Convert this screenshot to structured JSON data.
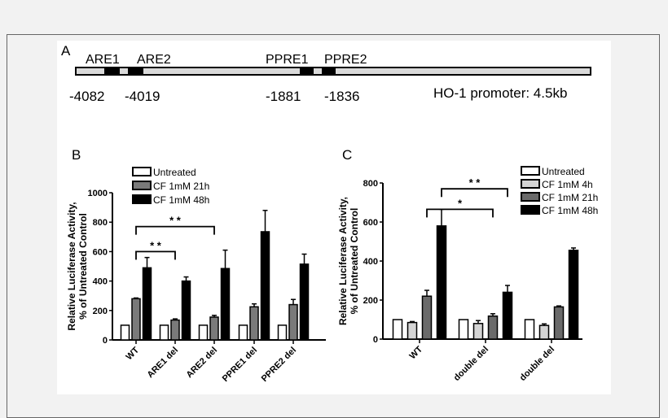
{
  "panel_a": {
    "label": "A",
    "elements": [
      {
        "name": "ARE1",
        "position": "-4082"
      },
      {
        "name": "ARE2",
        "position": "-4019"
      },
      {
        "name": "PPRE1",
        "position": "-1881"
      },
      {
        "name": "PPRE2",
        "position": "-1836"
      }
    ],
    "caption": "HO-1 promoter: 4.5kb"
  },
  "chart_data": [
    {
      "panel": "B",
      "type": "bar",
      "ylabel": [
        "Relative Luciferase Activity,",
        "% of Untreated Control"
      ],
      "ylim": [
        0,
        1000
      ],
      "yticks": [
        0,
        200,
        400,
        600,
        800,
        1000
      ],
      "categories": [
        "WT",
        "ARE1 del",
        "ARE2 del",
        "PPRE1 del",
        "PPRE2 del"
      ],
      "legend_position": "top-left",
      "series": [
        {
          "name": "Untreated",
          "color": "#ffffff",
          "values": [
            100,
            100,
            100,
            100,
            100
          ],
          "errors": [
            0,
            0,
            0,
            0,
            0
          ]
        },
        {
          "name": "CF 1mM 21h",
          "color": "#7a7a7a",
          "values": [
            280,
            135,
            155,
            225,
            240
          ],
          "errors": [
            5,
            8,
            12,
            20,
            35
          ]
        },
        {
          "name": "CF 1mM 48h",
          "color": "#000000",
          "values": [
            490,
            400,
            485,
            735,
            515
          ],
          "errors": [
            70,
            28,
            125,
            145,
            68
          ]
        }
      ],
      "significance": [
        {
          "from": "WT",
          "to": "ARE1 del",
          "label": "* *",
          "y": 600
        },
        {
          "from": "WT",
          "to": "ARE2 del",
          "label": "* *",
          "y": 770
        }
      ]
    },
    {
      "panel": "C",
      "type": "bar",
      "ylabel": [
        "Relative Luciferase Activity,",
        "% of Untreated Control"
      ],
      "ylim": [
        0,
        800
      ],
      "yticks": [
        0,
        200,
        400,
        600,
        800
      ],
      "categories": [
        "WT",
        "double del",
        "double del"
      ],
      "legend_position": "top-right",
      "series": [
        {
          "name": "Untreated",
          "color": "#ffffff",
          "values": [
            100,
            100,
            100
          ],
          "errors": [
            0,
            0,
            0
          ]
        },
        {
          "name": "CF 1mM 4h",
          "color": "#d4d4d4",
          "values": [
            85,
            80,
            70
          ],
          "errors": [
            5,
            15,
            8
          ]
        },
        {
          "name": "CF 1mM 21h",
          "color": "#6a6a6a",
          "values": [
            220,
            118,
            165
          ],
          "errors": [
            30,
            12,
            5
          ]
        },
        {
          "name": "CF 1mM 48h",
          "color": "#000000",
          "values": [
            580,
            240,
            455
          ],
          "errors": [
            85,
            35,
            12
          ]
        }
      ],
      "significance": [
        {
          "from_group": 0,
          "from_series": 2,
          "to_group": 1,
          "to_series": 2,
          "label": "*",
          "y": 665
        },
        {
          "from_group": 0,
          "from_series": 3,
          "to_group": 1,
          "to_series": 3,
          "label": "* *",
          "y": 770
        }
      ]
    }
  ]
}
